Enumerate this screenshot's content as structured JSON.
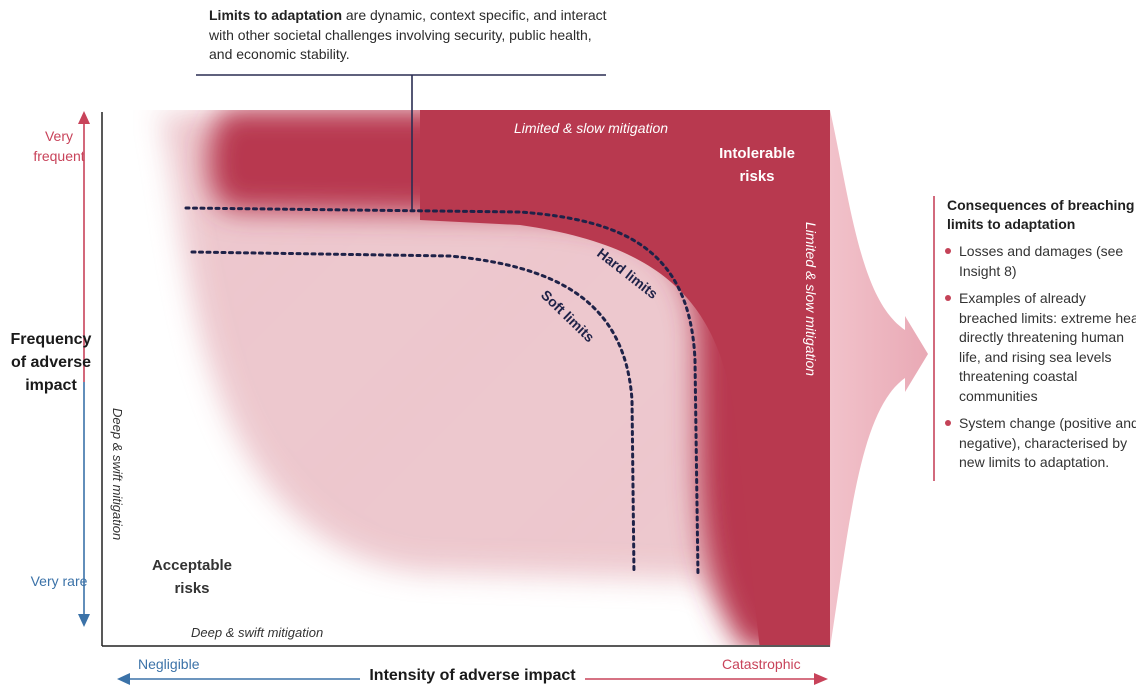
{
  "callout": {
    "bold": "Limits to adaptation",
    "rest": " are dynamic, context specific, and interact with other societal challenges involving security, public health, and economic stability."
  },
  "y_axis": {
    "title": "Frequency of adverse impact",
    "top_label": "Very frequent",
    "bottom_label": "Very rare"
  },
  "x_axis": {
    "title": "Intensity of adverse impact",
    "left_label": "Negligible",
    "right_label": "Catastrophic"
  },
  "zones": {
    "intolerable": "Intolerable risks",
    "acceptable": "Acceptable risks",
    "limited_top": "Limited & slow mitigation",
    "limited_right": "Limited & slow mitigation",
    "deep_left": "Deep & swift mitigation",
    "deep_bottom": "Deep & swift mitigation"
  },
  "curves": {
    "hard": "Hard limits",
    "soft": "Soft limits"
  },
  "consequences": {
    "title": "Consequences of breaching limits to adaptation",
    "items": [
      "Losses and damages (see Insight 8)",
      "Examples of already breached limits: extreme heat directly threatening human life, and rising sea levels threatening coastal communities",
      " System change (positive and negative), characterised by new limits to adaptation."
    ]
  },
  "colors": {
    "red": "#b8394f",
    "pink": "#e8a3b0",
    "blue": "#3b72a8",
    "navy": "#2a2d52"
  }
}
